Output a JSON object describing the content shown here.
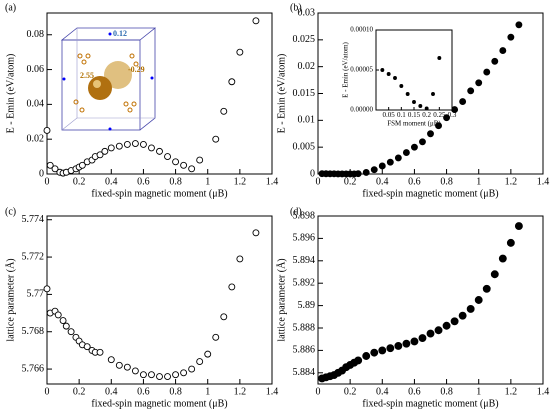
{
  "chart_data": [
    {
      "type": "scatter",
      "panel_label": "(a)",
      "xlabel": "fixed-spin magnetic moment (μB)",
      "ylabel": "E - Emin (eV/atom)",
      "marker": "open",
      "color": "#000000",
      "x": [
        0,
        0.02,
        0.05,
        0.08,
        0.1,
        0.12,
        0.15,
        0.18,
        0.2,
        0.22,
        0.25,
        0.28,
        0.3,
        0.33,
        0.36,
        0.4,
        0.45,
        0.5,
        0.55,
        0.6,
        0.65,
        0.7,
        0.75,
        0.8,
        0.85,
        0.9,
        0.95,
        1.05,
        1.1,
        1.15,
        1.2,
        1.3
      ],
      "values": [
        0.025,
        0.005,
        0.003,
        0.001,
        0.0005,
        0.001,
        0.002,
        0.003,
        0.004,
        0.005,
        0.007,
        0.008,
        0.01,
        0.011,
        0.013,
        0.015,
        0.016,
        0.017,
        0.0175,
        0.017,
        0.015,
        0.013,
        0.01,
        0.007,
        0.005,
        0.003,
        0.008,
        0.02,
        0.036,
        0.053,
        0.07,
        0.088
      ],
      "xlim": [
        0,
        1.4
      ],
      "xticks": [
        0,
        0.2,
        0.4,
        0.6,
        0.8,
        1,
        1.2,
        1.4
      ],
      "ylim": [
        0,
        0.0925
      ],
      "yticks": [
        0,
        0.02,
        0.04,
        0.06,
        0.08
      ],
      "annotations": [
        "0.12",
        "2.55",
        "-0.29"
      ]
    },
    {
      "type": "scatter",
      "panel_label": "(b)",
      "xlabel": "fixed-spin magnetic moment (μB)",
      "ylabel": "E - Emin (eV/atom)",
      "marker": "filled",
      "color": "#000000",
      "x": [
        0.025,
        0.05,
        0.075,
        0.1,
        0.125,
        0.15,
        0.175,
        0.2,
        0.225,
        0.25,
        0.3,
        0.35,
        0.4,
        0.45,
        0.5,
        0.55,
        0.6,
        0.65,
        0.7,
        0.75,
        0.8,
        0.85,
        0.9,
        0.95,
        1,
        1.05,
        1.1,
        1.15,
        1.2,
        1.25
      ],
      "values": [
        5e-05,
        4.5e-05,
        4e-05,
        3e-05,
        2e-05,
        1e-05,
        5e-06,
        2e-06,
        2e-05,
        6.5e-05,
        0.0003,
        0.0008,
        0.0015,
        0.0022,
        0.003,
        0.004,
        0.005,
        0.006,
        0.0075,
        0.009,
        0.0105,
        0.012,
        0.0135,
        0.0155,
        0.017,
        0.019,
        0.021,
        0.023,
        0.0255,
        0.0278
      ],
      "xlim": [
        0,
        1.4
      ],
      "xticks": [
        0,
        0.2,
        0.4,
        0.6,
        0.8,
        1,
        1.2,
        1.4
      ],
      "ylim": [
        0,
        0.03
      ],
      "yticks": [
        0,
        0.005,
        0.01,
        0.015,
        0.02,
        0.025,
        0.03
      ]
    },
    {
      "type": "scatter",
      "xlabel": "FSM moment (μB)",
      "ylabel": "E - Emin (eV/atom)",
      "marker": "filled",
      "color": "#000000",
      "x": [
        0.025,
        0.05,
        0.075,
        0.1,
        0.125,
        0.15,
        0.175,
        0.2,
        0.225,
        0.25
      ],
      "values": [
        5e-05,
        4.5e-05,
        4e-05,
        3e-05,
        2e-05,
        1e-05,
        5e-06,
        2e-06,
        2e-05,
        6.5e-05
      ],
      "xlim": [
        0,
        0.3
      ],
      "xticks": [
        0.05,
        0.1,
        0.15,
        0.2,
        0.25,
        0.3
      ],
      "ylim": [
        0,
        0.0001
      ],
      "yticks": [
        {
          "value": 0,
          "label": "0.00000"
        },
        {
          "value": 5e-05,
          "label": "0.00005"
        },
        {
          "value": 0.0001,
          "label": "0.00010"
        }
      ]
    },
    {
      "type": "scatter",
      "panel_label": "(c)",
      "xlabel": "fixed-spin magnetic moment (μB)",
      "ylabel": "lattice parameter (Å)",
      "marker": "open",
      "color": "#000000",
      "x": [
        0,
        0.02,
        0.05,
        0.07,
        0.1,
        0.12,
        0.15,
        0.18,
        0.2,
        0.22,
        0.25,
        0.28,
        0.3,
        0.33,
        0.4,
        0.45,
        0.5,
        0.55,
        0.6,
        0.65,
        0.7,
        0.75,
        0.8,
        0.85,
        0.9,
        0.95,
        1,
        1.05,
        1.1,
        1.15,
        1.2,
        1.3
      ],
      "values": [
        5.7703,
        5.769,
        5.7691,
        5.7689,
        5.7686,
        5.7683,
        5.768,
        5.7677,
        5.7675,
        5.7673,
        5.7672,
        5.767,
        5.7669,
        5.7669,
        5.7665,
        5.7662,
        5.7661,
        5.7659,
        5.7657,
        5.7657,
        5.7656,
        5.7656,
        5.7657,
        5.7658,
        5.766,
        5.7664,
        5.7668,
        5.7677,
        5.7688,
        5.7704,
        5.7719,
        5.7733
      ],
      "xlim": [
        0,
        1.4
      ],
      "xticks": [
        0,
        0.2,
        0.4,
        0.6,
        0.8,
        1,
        1.2,
        1.4
      ],
      "ylim": [
        5.7652,
        5.7742
      ],
      "yticks": [
        5.766,
        5.768,
        5.77,
        5.772,
        5.774
      ]
    },
    {
      "type": "scatter",
      "panel_label": "(d)",
      "xlabel": "fixed-spin magnetic moment (μB)",
      "ylabel": "lattice parameter (Å)",
      "marker": "filled",
      "color": "#000000",
      "x": [
        0.025,
        0.05,
        0.075,
        0.1,
        0.125,
        0.15,
        0.175,
        0.2,
        0.225,
        0.25,
        0.3,
        0.35,
        0.4,
        0.45,
        0.5,
        0.55,
        0.6,
        0.65,
        0.7,
        0.75,
        0.8,
        0.85,
        0.9,
        0.95,
        1,
        1.05,
        1.1,
        1.15,
        1.2,
        1.25
      ],
      "values": [
        5.8835,
        5.8836,
        5.8837,
        5.8838,
        5.884,
        5.8842,
        5.8845,
        5.8847,
        5.8849,
        5.8851,
        5.8855,
        5.8858,
        5.886,
        5.8862,
        5.8864,
        5.8866,
        5.8868,
        5.8871,
        5.8875,
        5.8878,
        5.8882,
        5.8886,
        5.8891,
        5.8897,
        5.8905,
        5.8915,
        5.8928,
        5.8942,
        5.8956,
        5.8971
      ],
      "xlim": [
        0,
        1.4
      ],
      "xticks": [
        0,
        0.2,
        0.4,
        0.6,
        0.8,
        1,
        1.2,
        1.4
      ],
      "ylim": [
        5.883,
        5.898
      ],
      "yticks": [
        5.884,
        5.886,
        5.888,
        5.89,
        5.892,
        5.894,
        5.896,
        5.898
      ]
    }
  ]
}
